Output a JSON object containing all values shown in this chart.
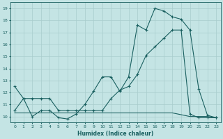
{
  "xlabel": "Humidex (Indice chaleur)",
  "xlim": [
    -0.5,
    23.5
  ],
  "ylim": [
    9.5,
    19.5
  ],
  "xticks": [
    0,
    1,
    2,
    3,
    4,
    5,
    6,
    7,
    8,
    9,
    10,
    11,
    12,
    13,
    14,
    15,
    16,
    17,
    18,
    19,
    20,
    21,
    22,
    23
  ],
  "yticks": [
    10,
    11,
    12,
    13,
    14,
    15,
    16,
    17,
    18,
    19
  ],
  "bg_color": "#c4e4e4",
  "grid_color": "#a8cccc",
  "line_color": "#1a6060",
  "line1_x": [
    0,
    1,
    2,
    3,
    4,
    5,
    6,
    7,
    8,
    9,
    10,
    11,
    12,
    13,
    14,
    15,
    16,
    17,
    18,
    19,
    20,
    21,
    22,
    23
  ],
  "line1_y": [
    12.5,
    11.5,
    10.0,
    10.5,
    10.5,
    9.9,
    9.8,
    10.2,
    11.0,
    12.1,
    13.3,
    13.3,
    12.1,
    13.3,
    17.6,
    17.2,
    19.0,
    18.8,
    18.3,
    18.1,
    17.2,
    12.3,
    10.1,
    9.9
  ],
  "line2_x": [
    0,
    2,
    4,
    6,
    8,
    10,
    12,
    14,
    16,
    18,
    20,
    21,
    22,
    23
  ],
  "line2_y": [
    10.3,
    10.3,
    10.3,
    10.3,
    10.3,
    10.3,
    10.3,
    10.3,
    10.3,
    10.3,
    10.0,
    10.0,
    10.0,
    9.9
  ],
  "line3_x": [
    0,
    1,
    2,
    3,
    4,
    5,
    6,
    7,
    8,
    9,
    10,
    11,
    12,
    13,
    14,
    15,
    16,
    17,
    18,
    19,
    20,
    21,
    22,
    23
  ],
  "line3_y": [
    10.5,
    11.5,
    11.5,
    11.5,
    11.5,
    10.5,
    10.5,
    10.5,
    10.5,
    10.5,
    10.5,
    11.5,
    12.2,
    12.5,
    13.5,
    15.1,
    15.8,
    16.5,
    17.2,
    17.2,
    10.2,
    9.9,
    9.9,
    9.9
  ]
}
